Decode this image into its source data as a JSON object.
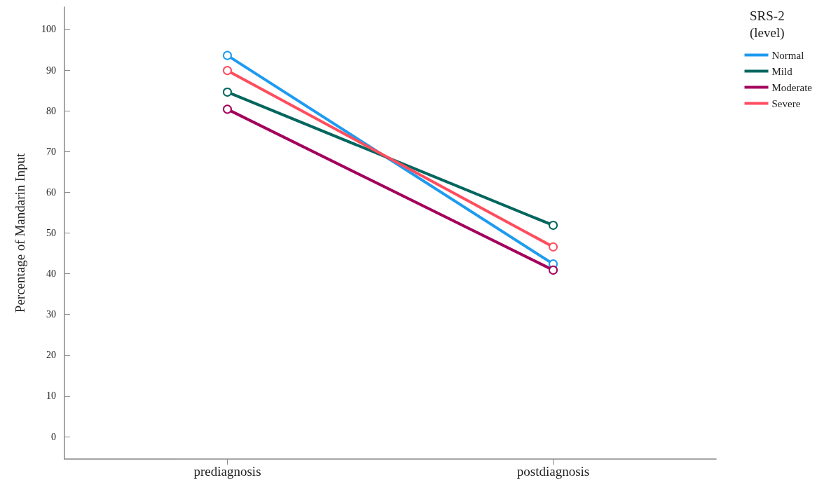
{
  "chart_data": {
    "type": "line",
    "ylabel": "Percentage of Mandarin Input",
    "legend_title": "SRS-2 (level)",
    "categories": [
      "prediagnosis",
      "postdiagnosis"
    ],
    "series": [
      {
        "name": "Normal",
        "color": "#1e9bf0",
        "values": [
          93.6,
          42.4
        ]
      },
      {
        "name": "Mild",
        "color": "#00665e",
        "values": [
          84.6,
          51.9
        ]
      },
      {
        "name": "Moderate",
        "color": "#a3005c",
        "values": [
          80.4,
          40.9
        ]
      },
      {
        "name": "Severe",
        "color": "#ff4d5e",
        "values": [
          89.9,
          46.6
        ]
      }
    ],
    "ylim": [
      -5.5,
      105.5
    ],
    "yticks": [
      0,
      10,
      20,
      30,
      40,
      50,
      60,
      70,
      80,
      90,
      100
    ],
    "grid": false,
    "legend": "right",
    "marker": "circle",
    "line_style": "solid"
  }
}
